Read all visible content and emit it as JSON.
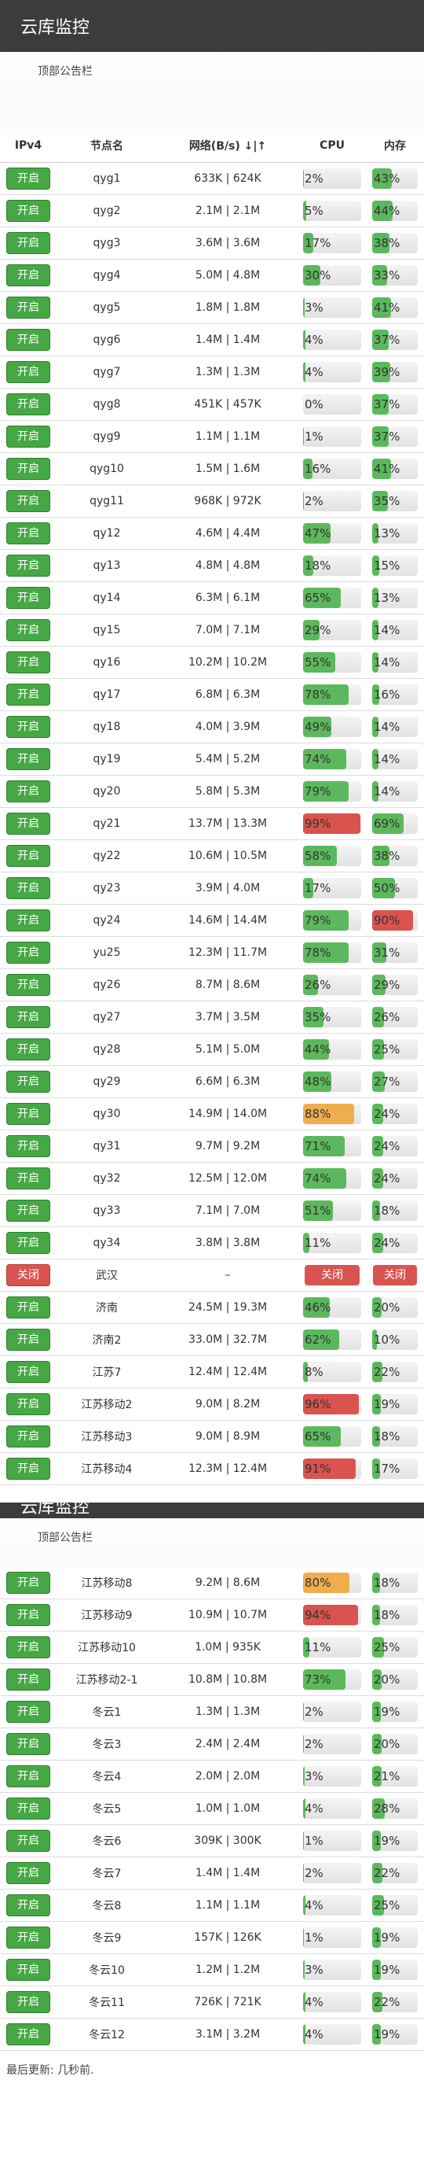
{
  "app": {
    "title": "云库监控",
    "notice": "顶部公告栏"
  },
  "table": {
    "headers": [
      "IPv4",
      "节点名",
      "网络(B/s) ↓|↑",
      "CPU",
      "内存"
    ]
  },
  "rows": [
    {
      "state": "开启",
      "name": "qyg1",
      "net": "633K | 624K",
      "cpu": 2,
      "mem": 43
    },
    {
      "state": "开启",
      "name": "qyg2",
      "net": "2.1M | 2.1M",
      "cpu": 5,
      "mem": 44
    },
    {
      "state": "开启",
      "name": "qyg3",
      "net": "3.6M | 3.6M",
      "cpu": 17,
      "mem": 38
    },
    {
      "state": "开启",
      "name": "qyg4",
      "net": "5.0M | 4.8M",
      "cpu": 30,
      "mem": 33
    },
    {
      "state": "开启",
      "name": "qyg5",
      "net": "1.8M | 1.8M",
      "cpu": 3,
      "mem": 41
    },
    {
      "state": "开启",
      "name": "qyg6",
      "net": "1.4M | 1.4M",
      "cpu": 4,
      "mem": 37
    },
    {
      "state": "开启",
      "name": "qyg7",
      "net": "1.3M | 1.3M",
      "cpu": 4,
      "mem": 39
    },
    {
      "state": "开启",
      "name": "qyg8",
      "net": "451K | 457K",
      "cpu": 0,
      "mem": 37
    },
    {
      "state": "开启",
      "name": "qyg9",
      "net": "1.1M | 1.1M",
      "cpu": 1,
      "mem": 37
    },
    {
      "state": "开启",
      "name": "qyg10",
      "net": "1.5M | 1.6M",
      "cpu": 16,
      "mem": 41
    },
    {
      "state": "开启",
      "name": "qyg11",
      "net": "968K | 972K",
      "cpu": 2,
      "mem": 35
    },
    {
      "state": "开启",
      "name": "qy12",
      "net": "4.6M | 4.4M",
      "cpu": 47,
      "mem": 13
    },
    {
      "state": "开启",
      "name": "qy13",
      "net": "4.8M | 4.8M",
      "cpu": 18,
      "mem": 15
    },
    {
      "state": "开启",
      "name": "qy14",
      "net": "6.3M | 6.1M",
      "cpu": 65,
      "mem": 13
    },
    {
      "state": "开启",
      "name": "qy15",
      "net": "7.0M | 7.1M",
      "cpu": 29,
      "mem": 14
    },
    {
      "state": "开启",
      "name": "qy16",
      "net": "10.2M | 10.2M",
      "cpu": 55,
      "mem": 14
    },
    {
      "state": "开启",
      "name": "qy17",
      "net": "6.8M | 6.3M",
      "cpu": 78,
      "mem": 16
    },
    {
      "state": "开启",
      "name": "qy18",
      "net": "4.0M | 3.9M",
      "cpu": 49,
      "mem": 14
    },
    {
      "state": "开启",
      "name": "qy19",
      "net": "5.4M | 5.2M",
      "cpu": 74,
      "mem": 14
    },
    {
      "state": "开启",
      "name": "qy20",
      "net": "5.8M | 5.3M",
      "cpu": 79,
      "mem": 14
    },
    {
      "state": "开启",
      "name": "qy21",
      "net": "13.7M | 13.3M",
      "cpu": 99,
      "mem": 69
    },
    {
      "state": "开启",
      "name": "qy22",
      "net": "10.6M | 10.5M",
      "cpu": 58,
      "mem": 38
    },
    {
      "state": "开启",
      "name": "qy23",
      "net": "3.9M | 4.0M",
      "cpu": 17,
      "mem": 50
    },
    {
      "state": "开启",
      "name": "qy24",
      "net": "14.6M | 14.4M",
      "cpu": 79,
      "mem": 90
    },
    {
      "state": "开启",
      "name": "yu25",
      "net": "12.3M | 11.7M",
      "cpu": 78,
      "mem": 31
    },
    {
      "state": "开启",
      "name": "qy26",
      "net": "8.7M | 8.6M",
      "cpu": 26,
      "mem": 29
    },
    {
      "state": "开启",
      "name": "qy27",
      "net": "3.7M | 3.5M",
      "cpu": 35,
      "mem": 26
    },
    {
      "state": "开启",
      "name": "qy28",
      "net": "5.1M | 5.0M",
      "cpu": 44,
      "mem": 25
    },
    {
      "state": "开启",
      "name": "qy29",
      "net": "6.6M | 6.3M",
      "cpu": 48,
      "mem": 27
    },
    {
      "state": "开启",
      "name": "qy30",
      "net": "14.9M | 14.0M",
      "cpu": 88,
      "mem": 24
    },
    {
      "state": "开启",
      "name": "qy31",
      "net": "9.7M | 9.2M",
      "cpu": 71,
      "mem": 24
    },
    {
      "state": "开启",
      "name": "qy32",
      "net": "12.5M | 12.0M",
      "cpu": 74,
      "mem": 24
    },
    {
      "state": "开启",
      "name": "qy33",
      "net": "7.1M | 7.0M",
      "cpu": 51,
      "mem": 18
    },
    {
      "state": "开启",
      "name": "qy34",
      "net": "3.8M | 3.8M",
      "cpu": 11,
      "mem": 24
    },
    {
      "state": "关闭",
      "name": "武汉",
      "net": "–",
      "cpu_text": "关闭",
      "mem_text": "关闭"
    },
    {
      "state": "开启",
      "name": "济南",
      "net": "24.5M | 19.3M",
      "cpu": 46,
      "mem": 20
    },
    {
      "state": "开启",
      "name": "济南2",
      "net": "33.0M | 32.7M",
      "cpu": 62,
      "mem": 10
    },
    {
      "state": "开启",
      "name": "江苏7",
      "net": "12.4M | 12.4M",
      "cpu": 8,
      "mem": 22
    },
    {
      "state": "开启",
      "name": "江苏移动2",
      "net": "9.0M | 8.2M",
      "cpu": 96,
      "mem": 19
    },
    {
      "state": "开启",
      "name": "江苏移动3",
      "net": "9.0M | 8.9M",
      "cpu": 65,
      "mem": 18
    },
    {
      "state": "开启",
      "name": "江苏移动4",
      "net": "12.3M | 12.4M",
      "cpu": 91,
      "mem": 17
    }
  ],
  "rows2": [
    {
      "state": "开启",
      "name": "江苏移动8",
      "net": "9.2M | 8.6M",
      "cpu": 80,
      "mem": 18
    },
    {
      "state": "开启",
      "name": "江苏移动9",
      "net": "10.9M | 10.7M",
      "cpu": 94,
      "mem": 18
    },
    {
      "state": "开启",
      "name": "江苏移动10",
      "net": "1.0M | 935K",
      "cpu": 11,
      "mem": 25
    },
    {
      "state": "开启",
      "name": "江苏移动2-1",
      "net": "10.8M | 10.8M",
      "cpu": 73,
      "mem": 20
    },
    {
      "state": "开启",
      "name": "冬云1",
      "net": "1.3M | 1.3M",
      "cpu": 2,
      "mem": 19
    },
    {
      "state": "开启",
      "name": "冬云3",
      "net": "2.4M | 2.4M",
      "cpu": 2,
      "mem": 20
    },
    {
      "state": "开启",
      "name": "冬云4",
      "net": "2.0M | 2.0M",
      "cpu": 3,
      "mem": 21
    },
    {
      "state": "开启",
      "name": "冬云5",
      "net": "1.0M | 1.0M",
      "cpu": 4,
      "mem": 28
    },
    {
      "state": "开启",
      "name": "冬云6",
      "net": "309K | 300K",
      "cpu": 1,
      "mem": 19
    },
    {
      "state": "开启",
      "name": "冬云7",
      "net": "1.4M | 1.4M",
      "cpu": 2,
      "mem": 22
    },
    {
      "state": "开启",
      "name": "冬云8",
      "net": "1.1M | 1.1M",
      "cpu": 4,
      "mem": 25
    },
    {
      "state": "开启",
      "name": "冬云9",
      "net": "157K | 126K",
      "cpu": 1,
      "mem": 19
    },
    {
      "state": "开启",
      "name": "冬云10",
      "net": "1.2M | 1.2M",
      "cpu": 3,
      "mem": 19
    },
    {
      "state": "开启",
      "name": "冬云11",
      "net": "726K | 721K",
      "cpu": 4,
      "mem": 22
    },
    {
      "state": "开启",
      "name": "冬云12",
      "net": "3.1M | 3.2M",
      "cpu": 4,
      "mem": 19
    }
  ],
  "footer": "最后更新: 几秒前."
}
